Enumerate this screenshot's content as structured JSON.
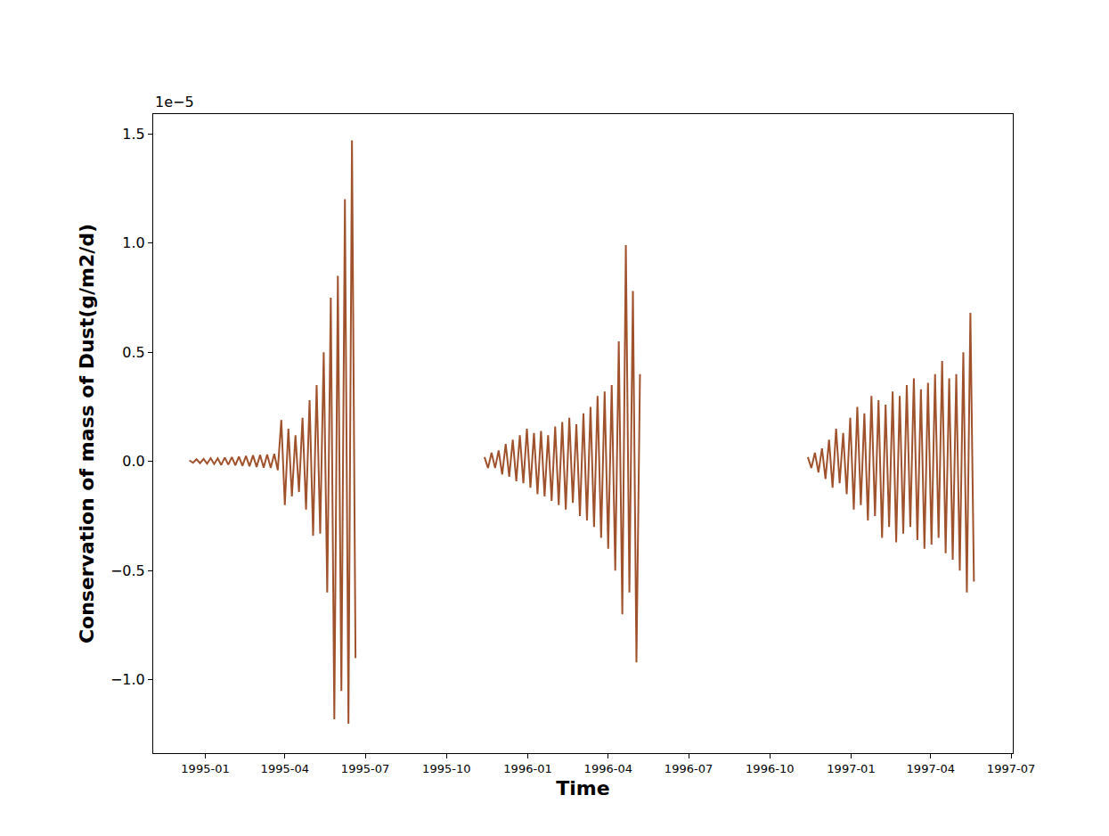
{
  "chart_data": {
    "type": "line",
    "x_label": "Time",
    "y_label": "Conservation of mass of Dust(g/m2/d)",
    "annotations": [
      {
        "text": "1e−5"
      }
    ],
    "color": "#a0522d",
    "grid": false,
    "x": [
      "1994-12-14",
      "1994-12-18",
      "1994-12-22",
      "1994-12-26",
      "1994-12-30",
      "1995-01-03",
      "1995-01-07",
      "1995-01-11",
      "1995-01-15",
      "1995-01-19",
      "1995-01-23",
      "1995-01-27",
      "1995-01-31",
      "1995-02-04",
      "1995-02-08",
      "1995-02-12",
      "1995-02-16",
      "1995-02-20",
      "1995-02-24",
      "1995-02-28",
      "1995-03-04",
      "1995-03-08",
      "1995-03-12",
      "1995-03-16",
      "1995-03-20",
      "1995-03-24",
      "1995-03-28",
      "1995-04-01",
      "1995-04-05",
      "1995-04-09",
      "1995-04-13",
      "1995-04-17",
      "1995-04-21",
      "1995-04-25",
      "1995-04-29",
      "1995-05-03",
      "1995-05-07",
      "1995-05-11",
      "1995-05-15",
      "1995-05-19",
      "1995-05-23",
      "1995-05-27",
      "1995-05-31",
      "1995-06-04",
      "1995-06-08",
      "1995-06-12",
      "1995-06-16",
      "1995-06-20",
      "1995-09-01",
      "1995-11-13",
      "1995-11-17",
      "1995-11-21",
      "1995-11-25",
      "1995-11-29",
      "1995-12-03",
      "1995-12-07",
      "1995-12-11",
      "1995-12-15",
      "1995-12-19",
      "1995-12-23",
      "1995-12-27",
      "1995-12-31",
      "1996-01-04",
      "1996-01-08",
      "1996-01-12",
      "1996-01-16",
      "1996-01-20",
      "1996-01-24",
      "1996-01-28",
      "1996-02-01",
      "1996-02-05",
      "1996-02-09",
      "1996-02-13",
      "1996-02-17",
      "1996-02-21",
      "1996-02-25",
      "1996-02-29",
      "1996-03-04",
      "1996-03-08",
      "1996-03-12",
      "1996-03-16",
      "1996-03-20",
      "1996-03-24",
      "1996-03-28",
      "1996-04-01",
      "1996-04-05",
      "1996-04-09",
      "1996-04-13",
      "1996-04-17",
      "1996-04-21",
      "1996-04-25",
      "1996-04-29",
      "1996-05-03",
      "1996-05-07",
      "1996-08-01",
      "1996-11-13",
      "1996-11-17",
      "1996-11-21",
      "1996-11-25",
      "1996-11-29",
      "1996-12-03",
      "1996-12-07",
      "1996-12-11",
      "1996-12-15",
      "1996-12-19",
      "1996-12-23",
      "1996-12-27",
      "1996-12-31",
      "1997-01-04",
      "1997-01-08",
      "1997-01-12",
      "1997-01-16",
      "1997-01-20",
      "1997-01-24",
      "1997-01-28",
      "1997-02-01",
      "1997-02-05",
      "1997-02-09",
      "1997-02-13",
      "1997-02-17",
      "1997-02-21",
      "1997-02-25",
      "1997-03-01",
      "1997-03-05",
      "1997-03-09",
      "1997-03-13",
      "1997-03-17",
      "1997-03-21",
      "1997-03-25",
      "1997-03-29",
      "1997-04-02",
      "1997-04-06",
      "1997-04-10",
      "1997-04-14",
      "1997-04-18",
      "1997-04-22",
      "1997-04-26",
      "1997-04-30",
      "1997-05-04",
      "1997-05-08",
      "1997-05-12",
      "1997-05-16",
      "1997-05-20"
    ],
    "values": [
      0.005,
      -0.006,
      0.01,
      -0.008,
      0.012,
      -0.01,
      0.015,
      -0.012,
      0.014,
      -0.016,
      0.018,
      -0.015,
      0.02,
      -0.018,
      0.022,
      -0.02,
      0.025,
      -0.022,
      0.028,
      -0.025,
      0.03,
      -0.028,
      0.032,
      -0.03,
      0.035,
      -0.04,
      0.19,
      -0.2,
      0.15,
      -0.16,
      0.12,
      -0.14,
      0.2,
      -0.22,
      0.28,
      -0.34,
      0.35,
      -0.33,
      0.5,
      -0.6,
      0.75,
      -1.18,
      0.85,
      -1.05,
      1.2,
      -1.2,
      1.47,
      -0.9,
      null,
      0.02,
      -0.03,
      0.04,
      -0.03,
      0.05,
      -0.06,
      0.08,
      -0.07,
      0.1,
      -0.09,
      0.12,
      -0.1,
      0.15,
      -0.12,
      0.13,
      -0.15,
      0.14,
      -0.16,
      0.12,
      -0.18,
      0.16,
      -0.2,
      0.18,
      -0.22,
      0.2,
      -0.19,
      0.17,
      -0.25,
      0.22,
      -0.27,
      0.25,
      -0.3,
      0.3,
      -0.35,
      0.32,
      -0.4,
      0.35,
      -0.5,
      0.55,
      -0.7,
      0.99,
      -0.6,
      0.78,
      -0.92,
      0.4,
      null,
      0.02,
      -0.03,
      0.04,
      -0.05,
      0.06,
      -0.08,
      0.1,
      -0.12,
      0.15,
      -0.1,
      0.13,
      -0.15,
      0.2,
      -0.22,
      0.25,
      -0.2,
      0.22,
      -0.27,
      0.3,
      -0.25,
      0.28,
      -0.35,
      0.26,
      -0.3,
      0.32,
      -0.37,
      0.3,
      -0.33,
      0.35,
      -0.3,
      0.38,
      -0.36,
      0.33,
      -0.4,
      0.36,
      -0.38,
      0.4,
      -0.35,
      0.46,
      -0.42,
      0.38,
      -0.45,
      0.4,
      -0.5,
      0.5,
      -0.6,
      0.68,
      -0.55
    ],
    "xlim": [
      "1994-11-03",
      "1997-07-03"
    ],
    "xticks": [
      {
        "value": "1995-01-01",
        "label": "1995-01"
      },
      {
        "value": "1995-04-01",
        "label": "1995-04"
      },
      {
        "value": "1995-07-01",
        "label": "1995-07"
      },
      {
        "value": "1995-10-01",
        "label": "1995-10"
      },
      {
        "value": "1996-01-01",
        "label": "1996-01"
      },
      {
        "value": "1996-04-01",
        "label": "1996-04"
      },
      {
        "value": "1996-07-01",
        "label": "1996-07"
      },
      {
        "value": "1996-10-01",
        "label": "1996-10"
      },
      {
        "value": "1997-01-01",
        "label": "1997-01"
      },
      {
        "value": "1997-04-01",
        "label": "1997-04"
      },
      {
        "value": "1997-07-01",
        "label": "1997-07"
      }
    ],
    "ylim": [
      -1.335,
      1.59
    ],
    "yticks": [
      {
        "value": -1,
        "label": "−1.0"
      },
      {
        "value": -0.5,
        "label": "−0.5"
      },
      {
        "value": 0,
        "label": "0.0"
      },
      {
        "value": 0.5,
        "label": "0.5"
      },
      {
        "value": 1,
        "label": "1.0"
      },
      {
        "value": 1.5,
        "label": "1.5"
      }
    ]
  }
}
